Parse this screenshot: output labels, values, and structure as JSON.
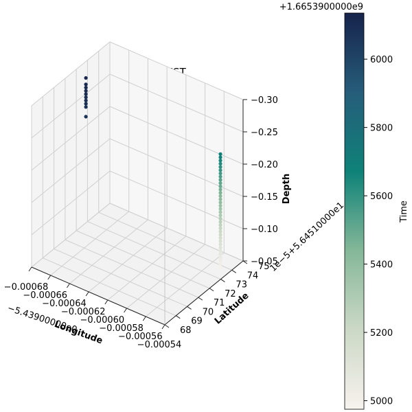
{
  "chart_data": {
    "type": "scatter",
    "projection": "3d",
    "title": "20221010-TANK-TEST",
    "x_axis": {
      "label": "Longitude",
      "offset_text": "−5.43900000e0",
      "ticks": [
        "−0.00068",
        "−0.00066",
        "−0.00064",
        "−0.00062",
        "−0.00060",
        "−0.00058",
        "−0.00056",
        "−0.00054"
      ],
      "range": [
        -0.00068,
        -0.00054
      ]
    },
    "y_axis": {
      "label": "Latitude",
      "offset_text": "1e−5+5.64510000e1",
      "ticks": [
        "68",
        "69",
        "70",
        "71",
        "72",
        "73",
        "74",
        "75"
      ],
      "range": [
        68,
        75
      ]
    },
    "z_axis": {
      "label": "Depth",
      "ticks": [
        "−0.30",
        "−0.25",
        "−0.20",
        "−0.15",
        "−0.10",
        "−0.05"
      ],
      "range": [
        -0.3,
        -0.05
      ],
      "inverted": true
    },
    "colorbar": {
      "label": "Time",
      "offset_text": "+1.6653900000e9",
      "ticks": [
        "5000",
        "5200",
        "5400",
        "5600",
        "5800",
        "6000"
      ],
      "range": [
        4975,
        6135
      ],
      "colormap": [
        "#f7f2ee",
        "#ccd9c6",
        "#85b798",
        "#0e8278",
        "#265d7a",
        "#17234b"
      ]
    },
    "grid": true,
    "series": [
      {
        "x": [
          -0.000677,
          -0.000677,
          -0.000677,
          -0.000677,
          -0.000677,
          -0.000677,
          -0.000677,
          -0.000677,
          -0.000677,
          -0.000677
        ],
        "y": [
          72.6,
          72.6,
          72.6,
          72.6,
          72.6,
          72.6,
          72.6,
          72.6,
          72.6,
          72.6
        ],
        "z": [
          -0.28,
          -0.27,
          -0.265,
          -0.26,
          -0.255,
          -0.25,
          -0.245,
          -0.24,
          -0.235,
          -0.22
        ],
        "t": [
          6120,
          6115,
          6110,
          6105,
          6100,
          6095,
          6090,
          6085,
          6080,
          6075
        ]
      },
      {
        "x": [
          -0.000545,
          -0.000545,
          -0.000545,
          -0.000545,
          -0.000545,
          -0.000545,
          -0.000545,
          -0.000545,
          -0.000545,
          -0.000545,
          -0.000545,
          -0.000545,
          -0.000545,
          -0.000545,
          -0.000545,
          -0.000545,
          -0.000545,
          -0.000545,
          -0.000545,
          -0.000545,
          -0.000545,
          -0.000545,
          -0.000545,
          -0.000545,
          -0.000545,
          -0.000545,
          -0.000545,
          -0.000545,
          -0.000545,
          -0.000545,
          -0.000545,
          -0.000545,
          -0.000545,
          -0.000545,
          -0.000545,
          -0.000545
        ],
        "y": [
          73.4,
          73.4,
          73.4,
          73.4,
          73.4,
          73.4,
          73.4,
          73.4,
          73.4,
          73.4,
          73.4,
          73.4,
          73.4,
          73.4,
          73.4,
          73.4,
          73.4,
          73.4,
          73.4,
          73.4,
          73.4,
          73.4,
          73.4,
          73.4,
          73.4,
          73.4,
          73.4,
          73.4,
          73.4,
          73.4,
          73.4,
          73.4,
          73.4,
          73.4,
          73.4,
          73.4
        ],
        "z": [
          -0.06,
          -0.065,
          -0.07,
          -0.075,
          -0.08,
          -0.085,
          -0.09,
          -0.095,
          -0.1,
          -0.105,
          -0.11,
          -0.115,
          -0.12,
          -0.125,
          -0.13,
          -0.135,
          -0.14,
          -0.145,
          -0.15,
          -0.155,
          -0.16,
          -0.165,
          -0.17,
          -0.175,
          -0.18,
          -0.185,
          -0.19,
          -0.195,
          -0.2,
          -0.205,
          -0.21,
          -0.215,
          -0.22,
          -0.225,
          -0.23,
          -0.235
        ],
        "t": [
          4990,
          5010,
          5030,
          5050,
          5070,
          5090,
          5110,
          5130,
          5150,
          5170,
          5190,
          5210,
          5230,
          5250,
          5270,
          5290,
          5310,
          5330,
          5350,
          5370,
          5390,
          5410,
          5430,
          5450,
          5470,
          5490,
          5510,
          5530,
          5550,
          5570,
          5590,
          5610,
          5630,
          5650,
          5670,
          5690
        ]
      }
    ]
  }
}
